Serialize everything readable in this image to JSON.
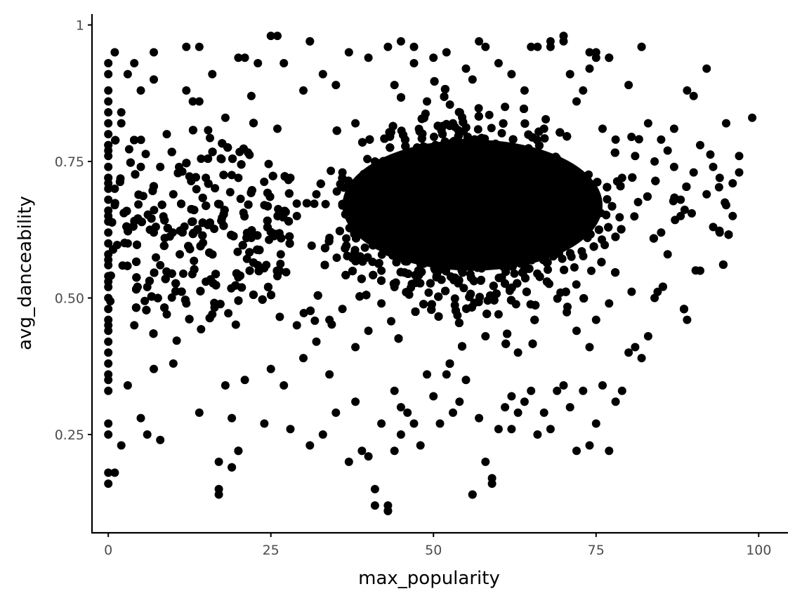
{
  "chart_data": {
    "type": "scatter",
    "title": "",
    "xlabel": "max_popularity",
    "ylabel": "avg_danceability",
    "xlim": [
      -2.5,
      104.5
    ],
    "ylim": [
      0.07,
      1.02
    ],
    "x_ticks": [
      0,
      25,
      50,
      75,
      100
    ],
    "x_tick_labels": [
      "0",
      "25",
      "50",
      "75",
      "100"
    ],
    "y_ticks": [
      0.25,
      0.5,
      0.75,
      1.0
    ],
    "y_tick_labels": [
      "0.25",
      "0.50",
      "0.75",
      "1"
    ],
    "grid": false,
    "legend": "none",
    "point_color": "#000000",
    "series": [
      {
        "x": [
          0,
          0,
          0,
          0,
          0,
          0,
          0,
          0,
          0,
          0,
          0,
          0,
          0,
          0,
          0,
          0,
          0,
          0,
          0,
          0,
          0,
          0,
          0,
          0,
          0,
          0,
          0,
          0,
          0,
          0,
          0,
          0,
          0,
          0,
          0,
          0,
          0,
          0,
          0,
          0,
          1,
          1,
          1,
          2,
          2,
          3,
          3,
          3,
          4,
          4,
          5,
          5,
          6,
          6,
          7,
          7,
          7,
          8,
          8,
          8,
          9,
          9,
          10,
          10,
          11,
          12,
          12,
          13,
          13,
          14,
          14,
          15,
          15,
          16,
          16,
          17,
          17,
          18,
          18,
          19,
          19,
          20,
          20,
          21,
          21,
          22,
          22,
          23,
          23,
          24,
          24,
          25,
          25,
          26,
          26,
          27,
          27,
          28,
          28,
          29,
          29,
          30,
          30,
          31,
          31,
          32,
          32,
          33,
          33,
          34,
          34,
          35,
          35,
          36,
          36,
          37,
          37,
          38,
          38,
          39,
          39,
          40,
          40,
          41,
          41,
          42,
          42,
          43,
          43,
          44,
          44,
          45,
          45,
          46,
          46,
          47,
          47,
          48,
          48,
          49,
          49,
          50,
          50,
          51,
          51,
          52,
          52,
          53,
          53,
          54,
          54,
          55,
          55,
          56,
          56,
          57,
          57,
          58,
          58,
          59,
          59,
          60,
          60,
          61,
          61,
          62,
          62,
          63,
          63,
          64,
          64,
          65,
          65,
          66,
          66,
          67,
          67,
          68,
          68,
          69,
          69,
          70,
          70,
          71,
          71,
          72,
          72,
          73,
          73,
          74,
          74,
          75,
          75,
          76,
          76,
          77,
          77,
          78,
          78,
          79,
          79,
          80,
          80,
          81,
          81,
          82,
          82,
          83,
          83,
          84,
          84,
          85,
          85,
          86,
          86,
          87,
          87,
          88,
          88,
          89,
          89,
          90,
          90,
          91,
          91,
          92,
          92,
          93,
          93,
          94,
          94,
          95,
          95,
          96,
          96,
          97,
          97,
          99,
          43,
          43,
          41,
          44,
          56,
          59,
          62,
          45,
          17,
          19,
          20,
          2,
          1,
          0,
          0,
          0,
          34,
          38,
          40,
          42,
          44,
          63,
          58,
          60,
          72,
          74,
          75,
          77,
          26,
          31,
          47,
          57,
          66,
          68,
          70,
          74,
          75,
          77,
          82,
          5,
          7,
          12,
          14,
          20
        ],
        "y": [
          0.93,
          0.91,
          0.88,
          0.86,
          0.84,
          0.82,
          0.8,
          0.78,
          0.76,
          0.74,
          0.72,
          0.7,
          0.68,
          0.66,
          0.64,
          0.62,
          0.6,
          0.58,
          0.56,
          0.54,
          0.52,
          0.5,
          0.48,
          0.46,
          0.44,
          0.42,
          0.4,
          0.38,
          0.36,
          0.35,
          0.33,
          0.27,
          0.25,
          0.18,
          0.16,
          0.65,
          0.71,
          0.77,
          0.57,
          0.45,
          0.95,
          0.7,
          0.18,
          0.82,
          0.23,
          0.91,
          0.6,
          0.34,
          0.93,
          0.45,
          0.74,
          0.28,
          0.52,
          0.25,
          0.95,
          0.62,
          0.37,
          0.74,
          0.56,
          0.24,
          0.8,
          0.47,
          0.69,
          0.38,
          0.58,
          0.96,
          0.49,
          0.86,
          0.64,
          0.96,
          0.29,
          0.72,
          0.53,
          0.91,
          0.47,
          0.2,
          0.15,
          0.83,
          0.34,
          0.28,
          0.19,
          0.72,
          0.22,
          0.94,
          0.35,
          0.87,
          0.61,
          0.93,
          0.56,
          0.67,
          0.27,
          0.98,
          0.37,
          0.81,
          0.54,
          0.93,
          0.34,
          0.72,
          0.26,
          0.65,
          0.45,
          0.88,
          0.39,
          0.97,
          0.23,
          0.69,
          0.42,
          0.91,
          0.25,
          0.61,
          0.36,
          0.89,
          0.29,
          0.73,
          0.48,
          0.95,
          0.2,
          0.82,
          0.31,
          0.68,
          0.22,
          0.94,
          0.21,
          0.75,
          0.12,
          0.55,
          0.27,
          0.96,
          0.11,
          0.89,
          0.33,
          0.97,
          0.25,
          0.63,
          0.29,
          0.93,
          0.27,
          0.71,
          0.23,
          0.86,
          0.36,
          0.94,
          0.32,
          0.77,
          0.27,
          0.95,
          0.36,
          0.82,
          0.29,
          0.68,
          0.31,
          0.92,
          0.35,
          0.9,
          0.14,
          0.79,
          0.28,
          0.96,
          0.2,
          0.73,
          0.17,
          0.93,
          0.26,
          0.85,
          0.3,
          0.91,
          0.32,
          0.72,
          0.29,
          0.88,
          0.31,
          0.96,
          0.33,
          0.71,
          0.25,
          0.81,
          0.29,
          0.96,
          0.26,
          0.75,
          0.33,
          0.97,
          0.34,
          0.91,
          0.3,
          0.86,
          0.22,
          0.88,
          0.33,
          0.92,
          0.23,
          0.95,
          0.27,
          0.81,
          0.34,
          0.94,
          0.22,
          0.79,
          0.31,
          0.72,
          0.33,
          0.89,
          0.4,
          0.76,
          0.41,
          0.96,
          0.39,
          0.82,
          0.43,
          0.75,
          0.5,
          0.79,
          0.62,
          0.77,
          0.58,
          0.81,
          0.74,
          0.68,
          0.65,
          0.88,
          0.46,
          0.73,
          0.87,
          0.55,
          0.78,
          0.92,
          0.69,
          0.74,
          0.63,
          0.72,
          0.62,
          0.67,
          0.82,
          0.71,
          0.65,
          0.76,
          0.73,
          0.83,
          0.12,
          0.11,
          0.15,
          0.22,
          0.14,
          0.16,
          0.26,
          0.3,
          0.14,
          0.19,
          0.22,
          0.84,
          0.67,
          0.78,
          0.72,
          0.53,
          0.46,
          0.41,
          0.44,
          0.49,
          0.52,
          0.4,
          0.43,
          0.47,
          0.44,
          0.41,
          0.46,
          0.49,
          0.98,
          0.97,
          0.96,
          0.97,
          0.96,
          0.97,
          0.98,
          0.95,
          0.94,
          0.94,
          0.96,
          0.88,
          0.9,
          0.88,
          0.86,
          0.94
        ]
      }
    ]
  }
}
